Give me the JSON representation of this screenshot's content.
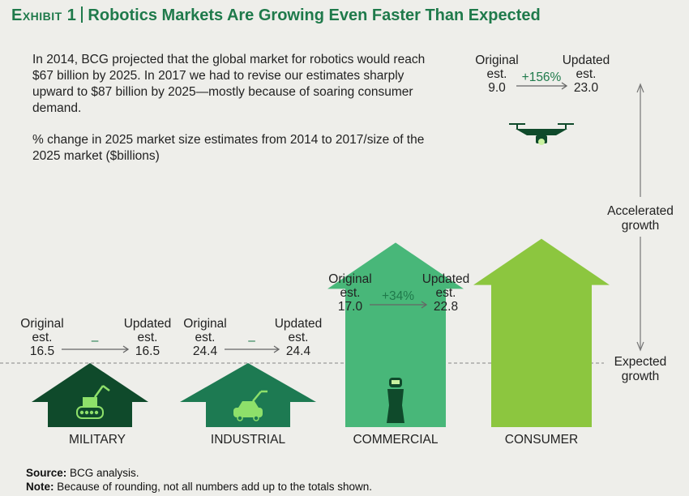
{
  "title": {
    "prefix": "Exhibit 1",
    "text": "Robotics Markets Are Growing Even Faster Than Expected"
  },
  "intro": "In 2014, BCG projected that the global market for robotics would reach $67 billion by 2025. In 2017 we had to revise our estimates sharply upward to $87 billion by 2025—mostly because of soaring consumer demand.",
  "subtitle": "% change in 2025 market size estimates from 2014 to 2017/size of the 2025 market ($billions)",
  "labels": {
    "original_line1": "Original",
    "original_line2": "est.",
    "updated_line1": "Updated",
    "updated_line2": "est.",
    "accelerated_line1": "Accelerated",
    "accelerated_line2": "growth",
    "expected_line1": "Expected",
    "expected_line2": "growth"
  },
  "colors": {
    "military": "#0f4a2b",
    "industrial": "#1d7a52",
    "commercial": "#48b779",
    "consumer": "#8cc63f",
    "title": "#1f7a4b",
    "change": "#1f7a4b"
  },
  "chart_data": {
    "type": "bar",
    "categories": [
      "MILITARY",
      "INDUSTRIAL",
      "COMMERCIAL",
      "CONSUMER"
    ],
    "series": [
      {
        "name": "Original est.",
        "values": [
          16.5,
          24.4,
          17.0,
          9.0
        ]
      },
      {
        "name": "Updated est.",
        "values": [
          16.5,
          24.4,
          22.8,
          23.0
        ]
      }
    ],
    "changes": [
      "–",
      "–",
      "+34%",
      "+156%"
    ],
    "icons": [
      "military-robot-icon",
      "industrial-robot-arm-icon",
      "humanoid-robot-icon",
      "drone-icon"
    ]
  },
  "footer": {
    "source_label": "Source:",
    "source_text": "BCG analysis.",
    "note_label": "Note:",
    "note_text": "Because of rounding, not all numbers add up to the totals shown."
  }
}
